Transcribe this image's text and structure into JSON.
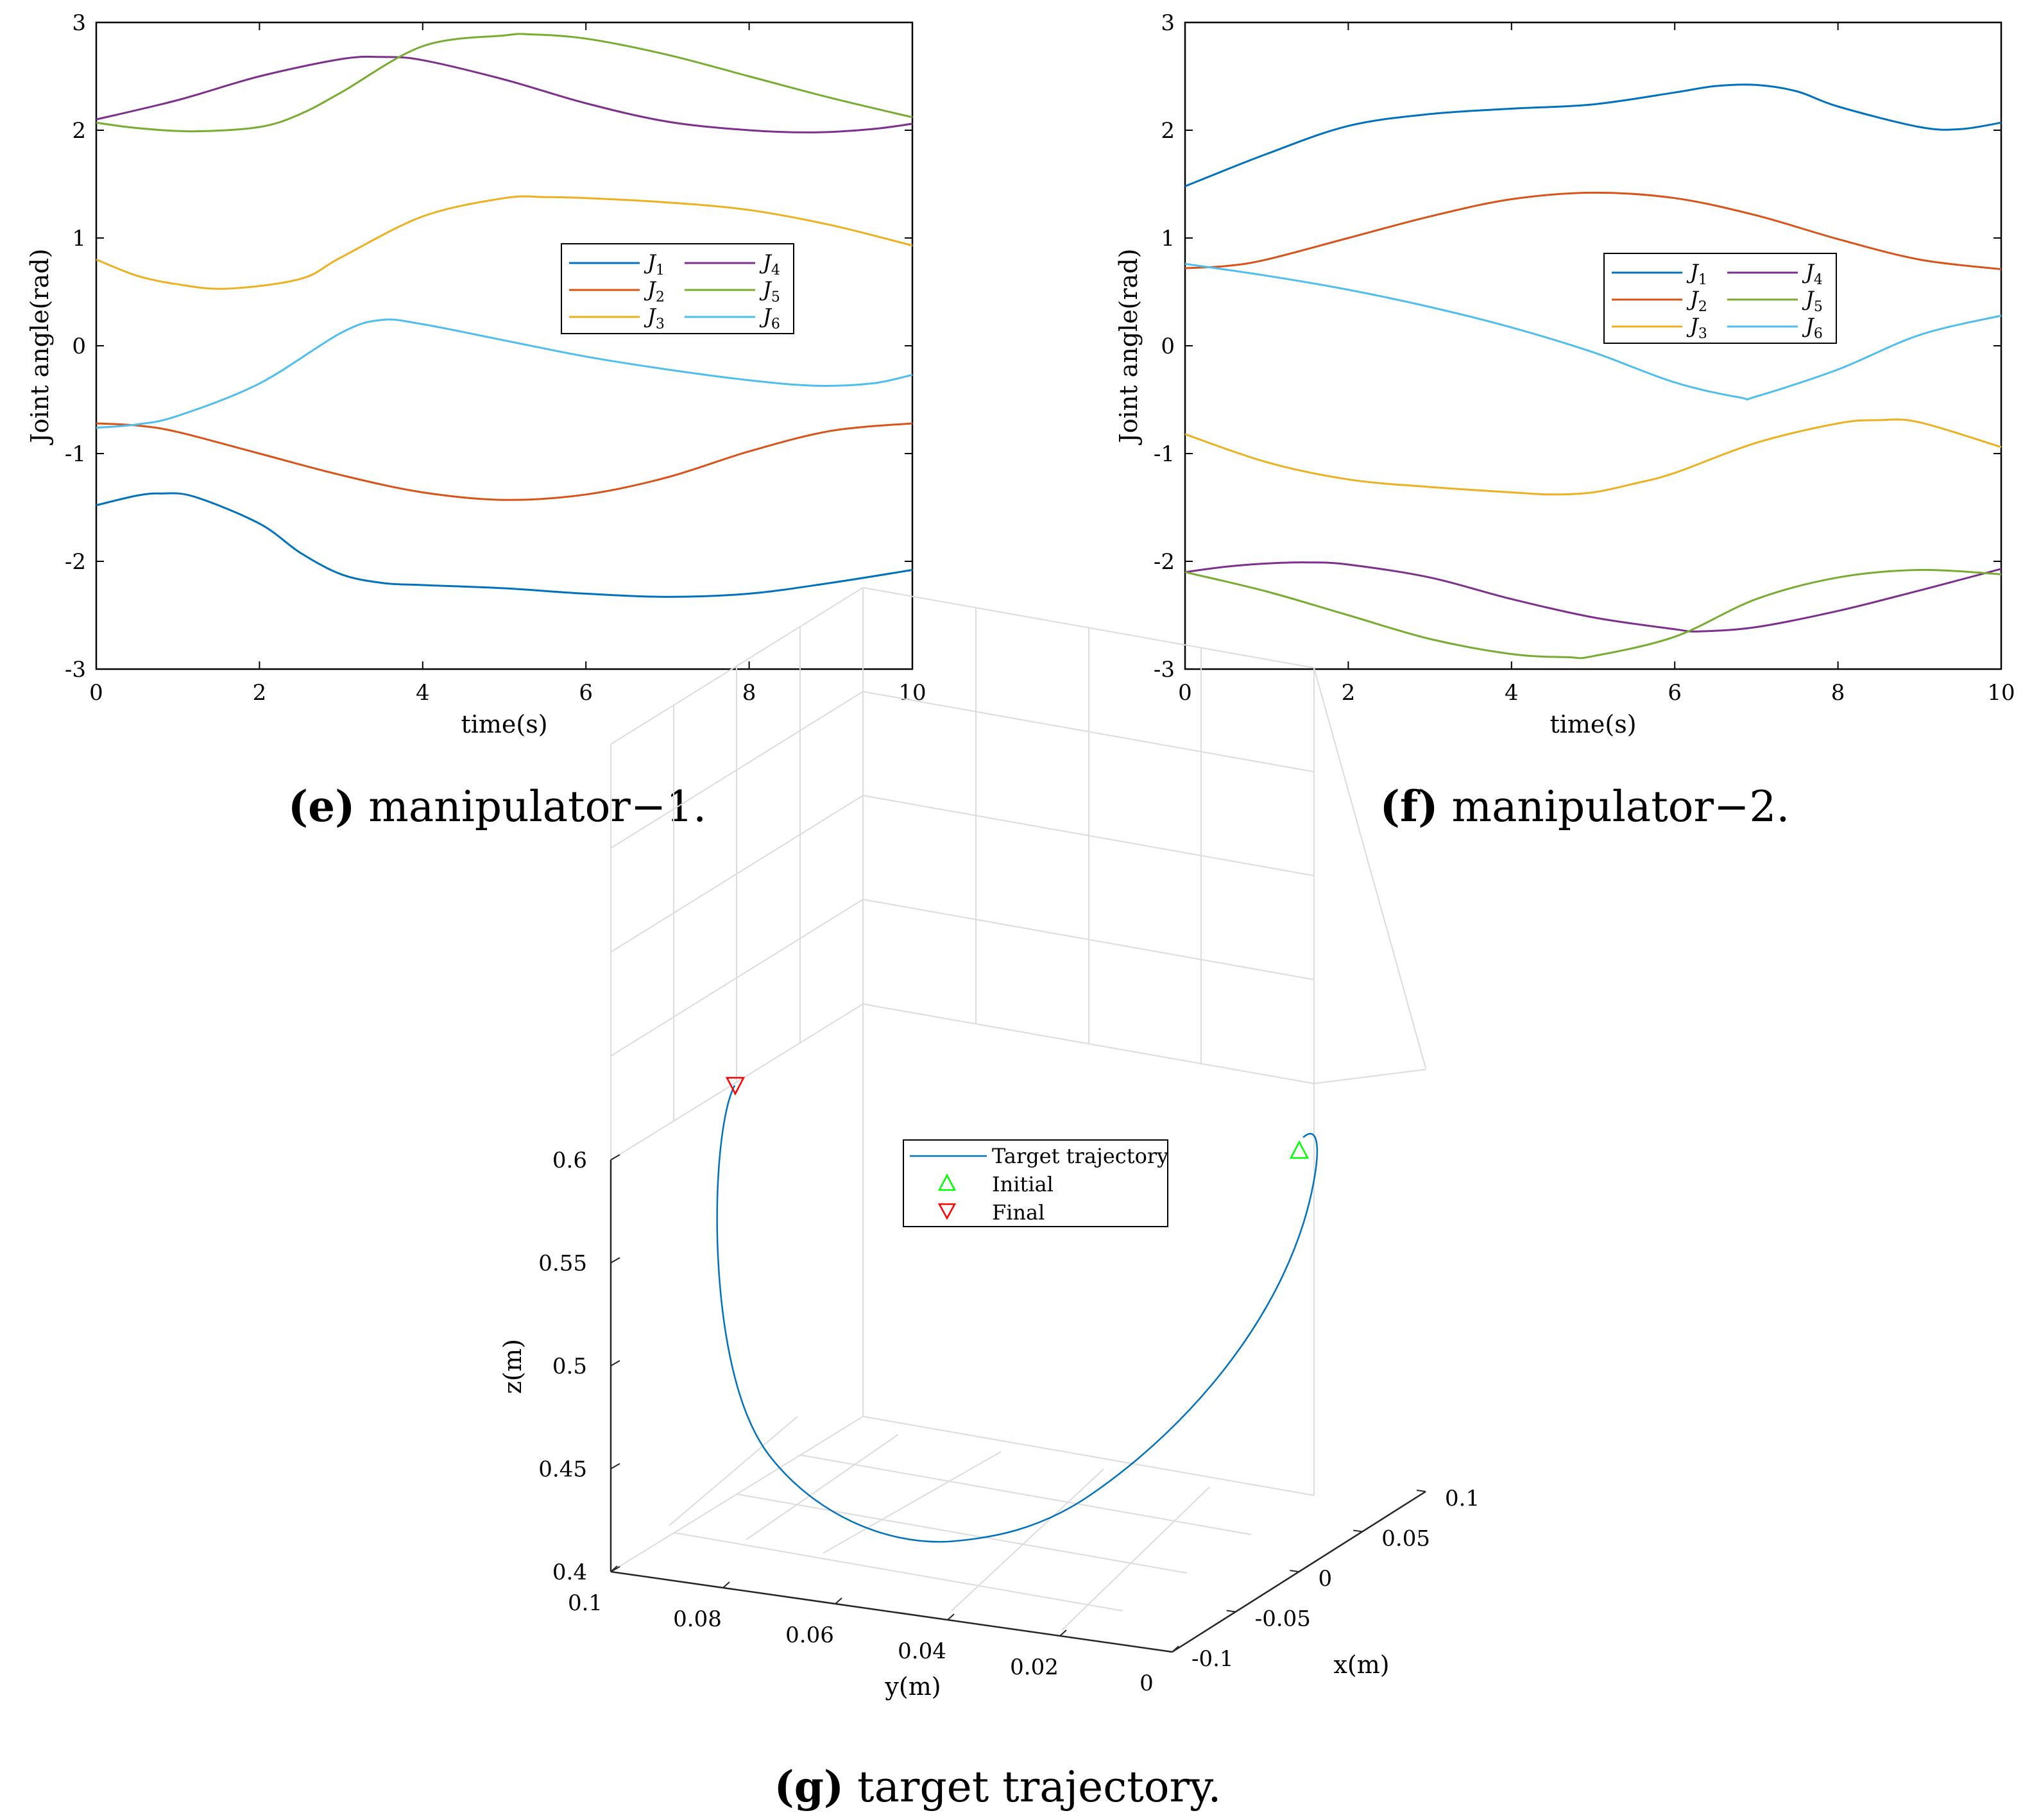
{
  "figure": {
    "captions": [
      {
        "letter": "(e)",
        "text": " manipulator−1."
      },
      {
        "letter": "(f)",
        "text": " manipulator−2."
      },
      {
        "letter": "(g)",
        "text": " target trajectory."
      }
    ]
  },
  "chart_data": [
    {
      "id": "e",
      "type": "line",
      "xlabel": "time(s)",
      "ylabel": "Joint angle(rad)",
      "xlim": [
        0,
        10
      ],
      "ylim": [
        -3,
        3
      ],
      "xticks": [
        "0",
        "2",
        "4",
        "6",
        "8",
        "10"
      ],
      "yticks": [
        "-3",
        "-2",
        "-1",
        "0",
        "1",
        "2",
        "3"
      ],
      "legend_position": "center-right",
      "series": [
        {
          "name": "J",
          "sub": "1",
          "color": "#0072BD",
          "x": [
            0,
            0.5,
            0.8,
            1.2,
            2,
            2.5,
            3,
            3.5,
            4,
            5,
            6,
            7,
            8,
            9,
            10
          ],
          "y": [
            -1.48,
            -1.39,
            -1.37,
            -1.4,
            -1.65,
            -1.92,
            -2.12,
            -2.2,
            -2.22,
            -2.25,
            -2.3,
            -2.33,
            -2.3,
            -2.2,
            -2.08
          ]
        },
        {
          "name": "J",
          "sub": "2",
          "color": "#D95319",
          "x": [
            0,
            0.5,
            1,
            2,
            3,
            4,
            5,
            6,
            7,
            8,
            9,
            10
          ],
          "y": [
            -0.72,
            -0.74,
            -0.8,
            -1.0,
            -1.2,
            -1.36,
            -1.43,
            -1.38,
            -1.22,
            -0.98,
            -0.79,
            -0.72
          ]
        },
        {
          "name": "J",
          "sub": "3",
          "color": "#EDB120",
          "x": [
            0,
            0.5,
            1,
            1.6,
            2.5,
            3,
            4,
            5,
            5.5,
            6,
            7,
            8,
            9,
            10
          ],
          "y": [
            0.8,
            0.65,
            0.57,
            0.53,
            0.62,
            0.82,
            1.2,
            1.37,
            1.38,
            1.37,
            1.33,
            1.26,
            1.12,
            0.93
          ]
        },
        {
          "name": "J",
          "sub": "4",
          "color": "#7E2F8E",
          "x": [
            0,
            1,
            2,
            3,
            3.5,
            4,
            5,
            6,
            7,
            8,
            8.8,
            9.5,
            10
          ],
          "y": [
            2.1,
            2.28,
            2.5,
            2.66,
            2.68,
            2.65,
            2.47,
            2.25,
            2.08,
            2.0,
            1.98,
            2.01,
            2.06
          ]
        },
        {
          "name": "J",
          "sub": "5",
          "color": "#77AC30",
          "x": [
            0,
            0.5,
            1.2,
            2,
            2.5,
            3,
            4,
            5,
            5.3,
            6,
            7,
            8,
            9,
            10
          ],
          "y": [
            2.07,
            2.02,
            1.99,
            2.03,
            2.15,
            2.35,
            2.78,
            2.88,
            2.89,
            2.85,
            2.7,
            2.5,
            2.3,
            2.12
          ]
        },
        {
          "name": "J",
          "sub": "6",
          "color": "#4DBEEE",
          "x": [
            0,
            0.5,
            1,
            2,
            3,
            3.5,
            4,
            5,
            6,
            7,
            8,
            8.8,
            9.5,
            10
          ],
          "y": [
            -0.76,
            -0.73,
            -0.65,
            -0.35,
            0.12,
            0.24,
            0.2,
            0.05,
            -0.1,
            -0.22,
            -0.32,
            -0.37,
            -0.35,
            -0.27
          ]
        }
      ]
    },
    {
      "id": "f",
      "type": "line",
      "xlabel": "time(s)",
      "ylabel": "Joint angle(rad)",
      "xlim": [
        0,
        10
      ],
      "ylim": [
        -3,
        3
      ],
      "xticks": [
        "0",
        "2",
        "4",
        "6",
        "8",
        "10"
      ],
      "yticks": [
        "-3",
        "-2",
        "-1",
        "0",
        "1",
        "2",
        "3"
      ],
      "legend_position": "center-right",
      "series": [
        {
          "name": "J",
          "sub": "1",
          "color": "#0072BD",
          "x": [
            0,
            1,
            2,
            3,
            4,
            5,
            6,
            6.5,
            7,
            7.5,
            8,
            9,
            9.5,
            10
          ],
          "y": [
            1.48,
            1.78,
            2.04,
            2.15,
            2.2,
            2.24,
            2.35,
            2.41,
            2.42,
            2.36,
            2.22,
            2.03,
            2.01,
            2.07
          ]
        },
        {
          "name": "J",
          "sub": "2",
          "color": "#D95319",
          "x": [
            0,
            0.5,
            1,
            2,
            3,
            4,
            5,
            6,
            7,
            8,
            9,
            10
          ],
          "y": [
            0.72,
            0.74,
            0.8,
            1.0,
            1.2,
            1.36,
            1.42,
            1.37,
            1.21,
            0.99,
            0.8,
            0.71
          ]
        },
        {
          "name": "J",
          "sub": "3",
          "color": "#EDB120",
          "x": [
            0,
            1,
            2,
            3,
            4,
            4.5,
            5,
            5.5,
            6,
            7,
            8,
            8.5,
            9,
            10
          ],
          "y": [
            -0.82,
            -1.08,
            -1.24,
            -1.31,
            -1.36,
            -1.38,
            -1.36,
            -1.28,
            -1.18,
            -0.9,
            -0.72,
            -0.69,
            -0.71,
            -0.94
          ]
        },
        {
          "name": "J",
          "sub": "4",
          "color": "#7E2F8E",
          "x": [
            0,
            0.5,
            1,
            1.5,
            2,
            3,
            4,
            5,
            6,
            6.3,
            7,
            8,
            9,
            10
          ],
          "y": [
            -2.1,
            -2.05,
            -2.02,
            -2.01,
            -2.03,
            -2.15,
            -2.35,
            -2.52,
            -2.63,
            -2.65,
            -2.61,
            -2.46,
            -2.27,
            -2.07
          ]
        },
        {
          "name": "J",
          "sub": "5",
          "color": "#77AC30",
          "x": [
            0,
            1,
            2,
            3,
            4,
            4.7,
            5,
            6,
            7,
            8,
            9,
            10
          ],
          "y": [
            -2.1,
            -2.28,
            -2.5,
            -2.72,
            -2.86,
            -2.89,
            -2.88,
            -2.7,
            -2.35,
            -2.15,
            -2.08,
            -2.12
          ]
        },
        {
          "name": "J",
          "sub": "6",
          "color": "#4DBEEE",
          "x": [
            0,
            1,
            2,
            3,
            4,
            5,
            6,
            6.8,
            7,
            8,
            9,
            10
          ],
          "y": [
            0.76,
            0.65,
            0.52,
            0.36,
            0.17,
            -0.06,
            -0.34,
            -0.48,
            -0.47,
            -0.22,
            0.1,
            0.28
          ]
        }
      ]
    },
    {
      "id": "g",
      "type": "line3d",
      "xlabel": "x(m)",
      "ylabel": "y(m)",
      "zlabel": "z(m)",
      "xlim": [
        -0.1,
        0.1
      ],
      "ylim": [
        0,
        0.1
      ],
      "zlim": [
        0.4,
        0.6
      ],
      "xticks": [
        "-0.1",
        "-0.05",
        "0",
        "0.05",
        "0.1"
      ],
      "yticks": [
        "0.1",
        "0.08",
        "0.06",
        "0.04",
        "0.02",
        "0"
      ],
      "zticks": [
        "0.4",
        "0.45",
        "0.5",
        "0.55",
        "0.6"
      ],
      "legend_position": "top-center",
      "legend": [
        "Target trajectory",
        "Initial",
        "Final"
      ],
      "markers": {
        "initial": {
          "color": "#00FF00"
        },
        "final": {
          "color": "#FF0000"
        }
      },
      "series": [
        {
          "name": "Target trajectory",
          "color": "#0072BD"
        }
      ]
    }
  ]
}
